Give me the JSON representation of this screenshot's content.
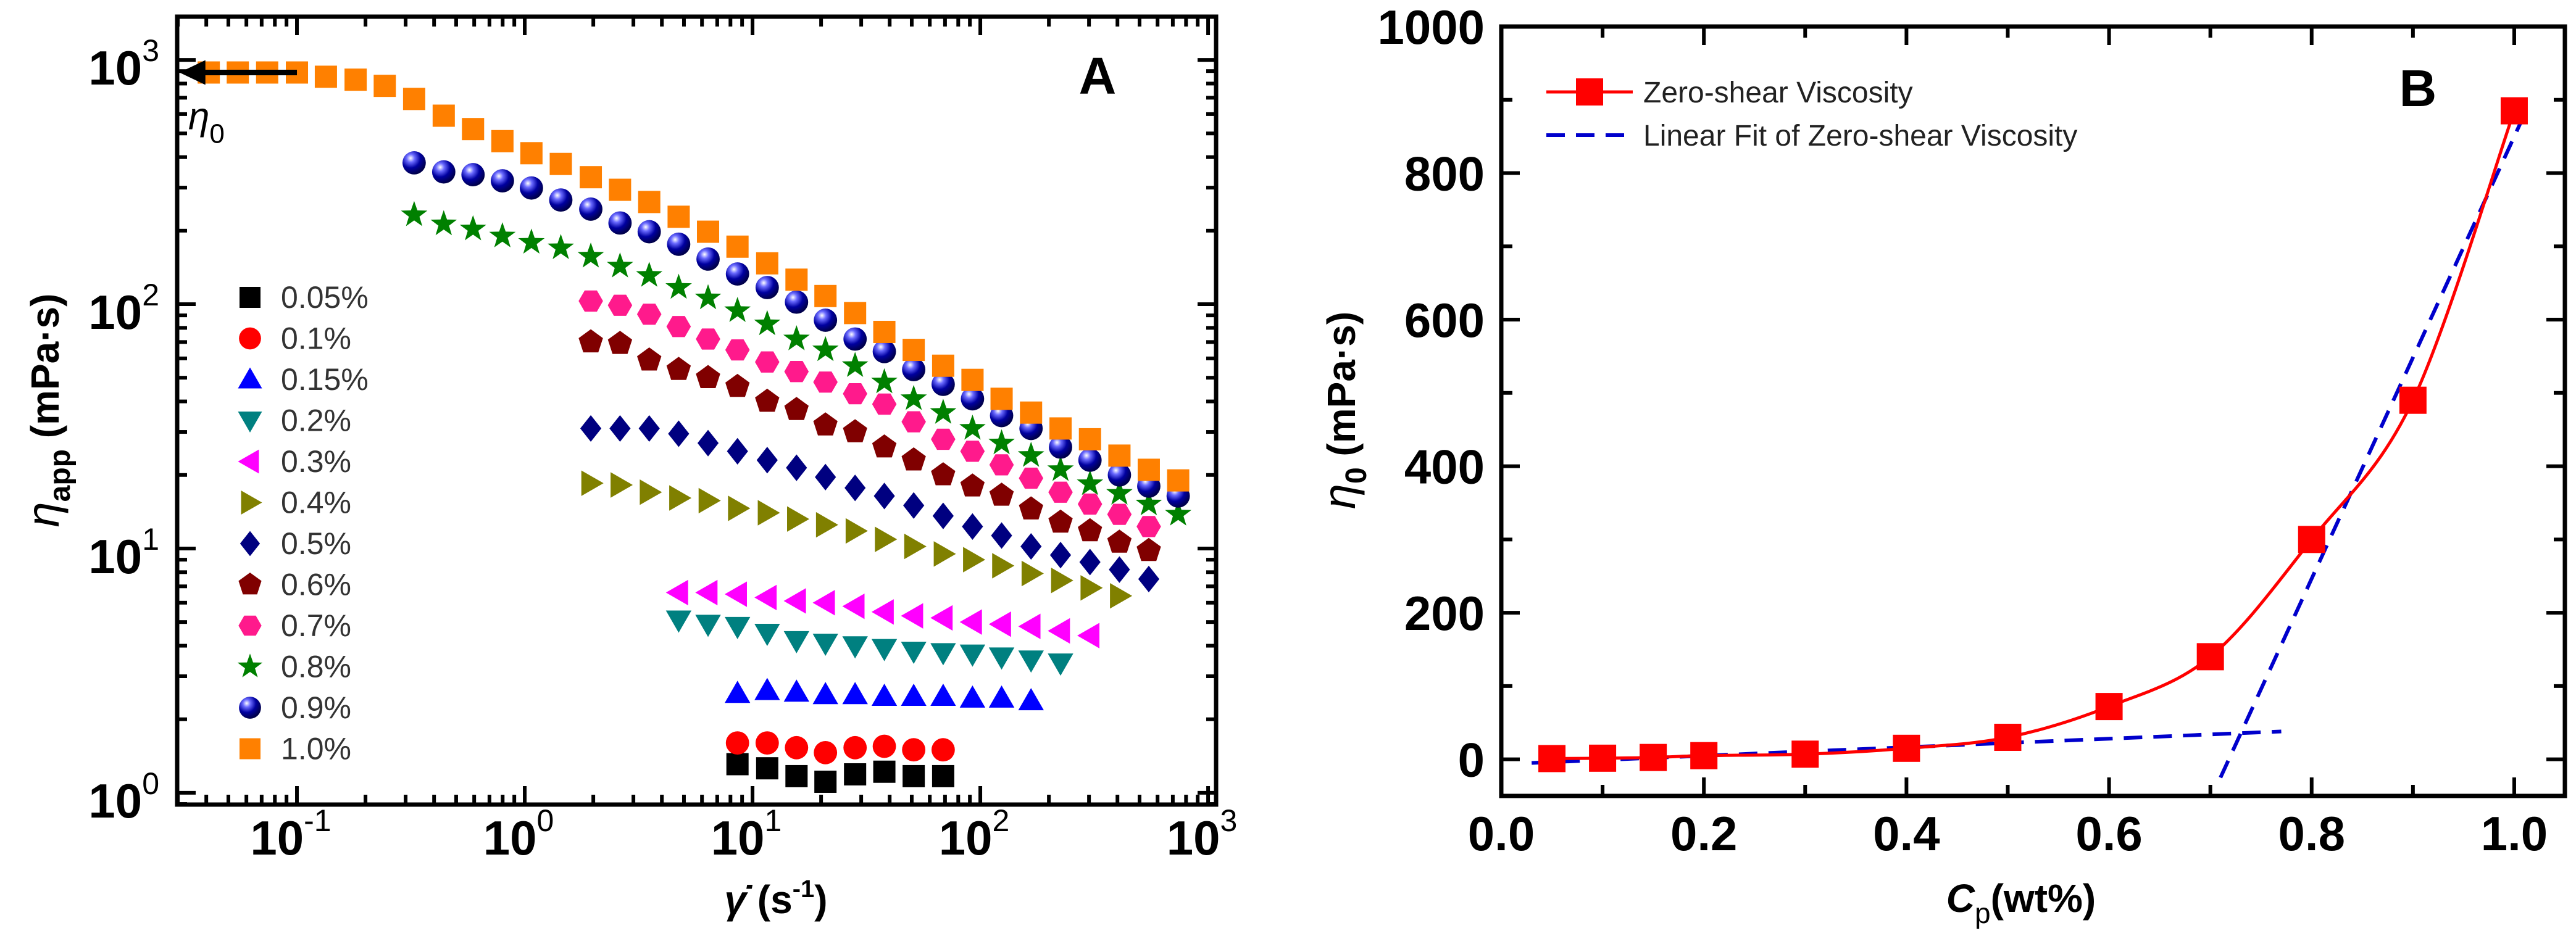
{
  "chart_data": [
    {
      "panel": "A",
      "type": "scatter",
      "x_scale": "log",
      "y_scale": "log",
      "xlim": [
        0.0298,
        1084
      ],
      "ylim": [
        0.895,
        1503
      ],
      "panel_label": "A",
      "xlabel": {
        "symbol": "γ̇",
        "open": " (s",
        "exp": "-1",
        "close": ")"
      },
      "ylabel": {
        "symbol": "η",
        "sub": "app",
        "unit": " (mPa·s)"
      },
      "x_ticks": [
        {
          "value": 0.1,
          "base": "10",
          "exp": "-1"
        },
        {
          "value": 1,
          "base": "10",
          "exp": "0"
        },
        {
          "value": 10,
          "base": "10",
          "exp": "1"
        },
        {
          "value": 100,
          "base": "10",
          "exp": "2"
        },
        {
          "value": 1000,
          "base": "10",
          "exp": "3"
        }
      ],
      "y_ticks": [
        {
          "value": 1,
          "base": "10",
          "exp": "0"
        },
        {
          "value": 10,
          "base": "10",
          "exp": "1"
        },
        {
          "value": 100,
          "base": "10",
          "exp": "2"
        },
        {
          "value": 1000,
          "base": "10",
          "exp": "3"
        }
      ],
      "annotation": {
        "symbol": "η",
        "sub": "0",
        "arrow_from_x": 0.1,
        "arrow_to_x": 0.0305,
        "y": 888
      },
      "legend_position": "left-middle",
      "series": [
        {
          "name": "0.05%",
          "marker": "square",
          "color": "#000000",
          "x": [
            8.59,
            11.6,
            15.6,
            20.9,
            28.2,
            37.9,
            51.0,
            68.7
          ],
          "y": [
            1.31,
            1.26,
            1.17,
            1.11,
            1.19,
            1.22,
            1.17,
            1.17
          ]
        },
        {
          "name": "0.1%",
          "marker": "circle",
          "color": "#ff0000",
          "x": [
            8.59,
            11.6,
            15.6,
            20.9,
            28.2,
            37.9,
            51.0,
            68.7
          ],
          "y": [
            1.6,
            1.6,
            1.53,
            1.46,
            1.53,
            1.55,
            1.5,
            1.5
          ]
        },
        {
          "name": "0.15%",
          "marker": "triangle-up",
          "color": "#0000ff",
          "x": [
            8.59,
            11.6,
            15.6,
            20.9,
            28.2,
            37.9,
            51.0,
            68.7,
            92.4,
            124,
            167
          ],
          "y": [
            2.55,
            2.62,
            2.58,
            2.52,
            2.52,
            2.48,
            2.48,
            2.48,
            2.44,
            2.44,
            2.38
          ]
        },
        {
          "name": "0.2%",
          "marker": "triangle-down",
          "color": "#008080",
          "x": [
            4.74,
            6.38,
            8.59,
            11.6,
            15.6,
            20.9,
            28.2,
            37.9,
            51.0,
            68.7,
            92.4,
            124,
            167,
            225
          ],
          "y": [
            5.1,
            4.9,
            4.8,
            4.5,
            4.2,
            4.1,
            4.0,
            3.9,
            3.8,
            3.75,
            3.7,
            3.6,
            3.5,
            3.4
          ]
        },
        {
          "name": "0.3%",
          "marker": "triangle-left",
          "color": "#ff00ff",
          "x": [
            4.74,
            6.38,
            8.59,
            11.6,
            15.6,
            20.9,
            28.2,
            37.9,
            51.0,
            68.7,
            92.4,
            124,
            167,
            225,
            303
          ],
          "y": [
            6.6,
            6.6,
            6.5,
            6.3,
            6.1,
            6.0,
            5.8,
            5.5,
            5.3,
            5.2,
            5.0,
            4.9,
            4.8,
            4.6,
            4.4
          ]
        },
        {
          "name": "0.4%",
          "marker": "triangle-right",
          "color": "#808000",
          "x": [
            1.95,
            2.62,
            3.52,
            4.74,
            6.38,
            8.59,
            11.6,
            15.6,
            20.9,
            28.2,
            37.9,
            51.0,
            68.7,
            92.4,
            124,
            167,
            225,
            303,
            408
          ],
          "y": [
            18.5,
            18.2,
            17.0,
            16.1,
            15.7,
            14.6,
            14.0,
            13.2,
            12.5,
            11.8,
            10.9,
            10.2,
            9.5,
            9.0,
            8.5,
            7.9,
            7.4,
            6.9,
            6.4
          ]
        },
        {
          "name": "0.5%",
          "marker": "diamond",
          "color": "#000080",
          "x": [
            1.95,
            2.62,
            3.52,
            4.74,
            6.38,
            8.59,
            11.6,
            15.6,
            20.9,
            28.2,
            37.9,
            51.0,
            68.7,
            92.4,
            124,
            167,
            225,
            303,
            408,
            549
          ],
          "y": [
            31,
            31,
            31,
            29.5,
            27,
            25,
            23,
            21.4,
            19.6,
            17.7,
            16.4,
            15,
            13.6,
            12.3,
            11.3,
            10.2,
            9.4,
            8.8,
            8.2,
            7.5
          ]
        },
        {
          "name": "0.6%",
          "marker": "pentagon",
          "color": "#800000",
          "x": [
            1.95,
            2.62,
            3.52,
            4.74,
            6.38,
            8.59,
            11.6,
            15.6,
            20.9,
            28.2,
            37.9,
            51.0,
            68.7,
            92.4,
            124,
            167,
            225,
            303,
            408,
            549
          ],
          "y": [
            70,
            69,
            59,
            54,
            50,
            46,
            40,
            37,
            32,
            30,
            26,
            23,
            20,
            18,
            16.5,
            14.5,
            12.8,
            11.8,
            10.6,
            9.8
          ]
        },
        {
          "name": "0.7%",
          "marker": "hexagon",
          "color": "#ff1a8c",
          "x": [
            1.95,
            2.62,
            3.52,
            4.74,
            6.38,
            8.59,
            11.6,
            15.6,
            20.9,
            28.2,
            37.9,
            51.0,
            68.7,
            92.4,
            124,
            167,
            225,
            303,
            408,
            549
          ],
          "y": [
            103,
            99,
            91,
            81,
            72,
            65,
            58,
            53,
            48,
            43,
            39,
            33,
            28,
            25,
            22,
            19.4,
            17,
            15.2,
            13.8,
            12.3
          ]
        },
        {
          "name": "0.8%",
          "marker": "star",
          "color": "#008000",
          "x": [
            0.327,
            0.441,
            0.593,
            0.798,
            1.07,
            1.44,
            1.95,
            2.62,
            3.52,
            4.74,
            6.38,
            8.59,
            11.6,
            15.6,
            20.9,
            28.2,
            37.9,
            51.0,
            68.7,
            92.4,
            124,
            167,
            225,
            303,
            408,
            549,
            739
          ],
          "y": [
            232,
            213,
            203,
            190,
            179,
            170,
            157,
            143,
            131,
            117,
            106,
            94,
            83,
            72,
            65,
            56,
            48,
            41,
            36,
            31,
            27,
            24,
            21,
            18.4,
            16.8,
            15.2,
            13.8
          ]
        },
        {
          "name": "0.9%",
          "marker": "sphere",
          "color": "#000099",
          "x": [
            0.327,
            0.441,
            0.593,
            0.798,
            1.07,
            1.44,
            1.95,
            2.62,
            3.52,
            4.74,
            6.38,
            8.59,
            11.6,
            15.6,
            20.9,
            28.2,
            37.9,
            51.0,
            68.7,
            92.4,
            124,
            167,
            225,
            303,
            408,
            549,
            739
          ],
          "y": [
            379,
            348,
            339,
            320,
            299,
            267,
            245,
            215,
            198,
            176,
            153,
            133,
            117,
            102,
            86,
            72,
            64,
            54,
            47,
            41,
            35,
            31,
            26,
            23,
            20,
            18,
            16.4
          ]
        },
        {
          "name": "1.0%",
          "marker": "square",
          "color": "#ff8000",
          "x": [
            0.041,
            0.055,
            0.074,
            0.1,
            0.134,
            0.181,
            0.243,
            0.327,
            0.441,
            0.593,
            0.798,
            1.07,
            1.44,
            1.95,
            2.62,
            3.52,
            4.74,
            6.38,
            8.59,
            11.6,
            15.6,
            20.9,
            28.2,
            37.9,
            51.0,
            68.7,
            92.4,
            124,
            167,
            225,
            303,
            408,
            549,
            739
          ],
          "y": [
            888,
            888,
            888,
            888,
            853,
            830,
            783,
            692,
            591,
            521,
            465,
            415,
            375,
            331,
            294,
            262,
            228,
            198,
            172,
            147,
            126,
            108,
            92,
            77,
            65,
            56,
            49,
            41,
            36,
            31,
            28,
            24,
            21,
            19
          ]
        }
      ]
    },
    {
      "panel": "B",
      "type": "line",
      "xlim": [
        0,
        1.05
      ],
      "ylim": [
        -50,
        1000
      ],
      "panel_label": "B",
      "xlabel": {
        "symbol": "C",
        "sub": "p",
        "unit": "(wt%)"
      },
      "ylabel": {
        "symbol": "η",
        "sub": "0",
        "unit": " (mPa·s)"
      },
      "x_ticks": [
        "0.0",
        "0.2",
        "0.4",
        "0.6",
        "0.8",
        "1.0"
      ],
      "y_ticks": [
        "0",
        "200",
        "400",
        "600",
        "800",
        "1000"
      ],
      "legend_position": "top-left",
      "series": [
        {
          "name": "Zero-shear Viscosity",
          "marker": "square",
          "color": "#ff0000",
          "line": "solid-smooth",
          "x": [
            0.05,
            0.1,
            0.15,
            0.2,
            0.3,
            0.4,
            0.5,
            0.6,
            0.7,
            0.8,
            0.9,
            1.0
          ],
          "y": [
            1,
            1.5,
            2.5,
            5,
            7,
            15,
            30,
            72,
            140,
            300,
            490,
            885
          ]
        },
        {
          "name": "Linear Fit of Zero-shear Viscosity",
          "marker": "none",
          "color": "#0000cc",
          "line": "dashed",
          "segments": [
            {
              "x": [
                0.03,
                0.77
              ],
              "y": [
                -5,
                38
              ]
            },
            {
              "x": [
                0.71,
                1.01
              ],
              "y": [
                -25,
                880
              ]
            }
          ]
        }
      ]
    }
  ]
}
